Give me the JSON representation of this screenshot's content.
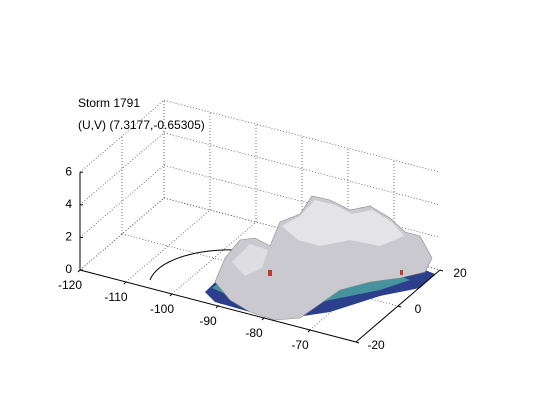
{
  "chart_data": {
    "type": "surface3d",
    "title": "Storm 1791",
    "subtitle": "(U,V) (7.3177,-0.65305)",
    "xlim": [
      -120,
      -60
    ],
    "xticks": [
      -120,
      -110,
      -100,
      -90,
      -80,
      -70
    ],
    "ylim": [
      -20,
      20
    ],
    "yticks": [
      -20,
      0,
      20
    ],
    "zlim": [
      0,
      6
    ],
    "zticks": [
      0,
      2,
      4,
      6
    ],
    "grid": true
  }
}
